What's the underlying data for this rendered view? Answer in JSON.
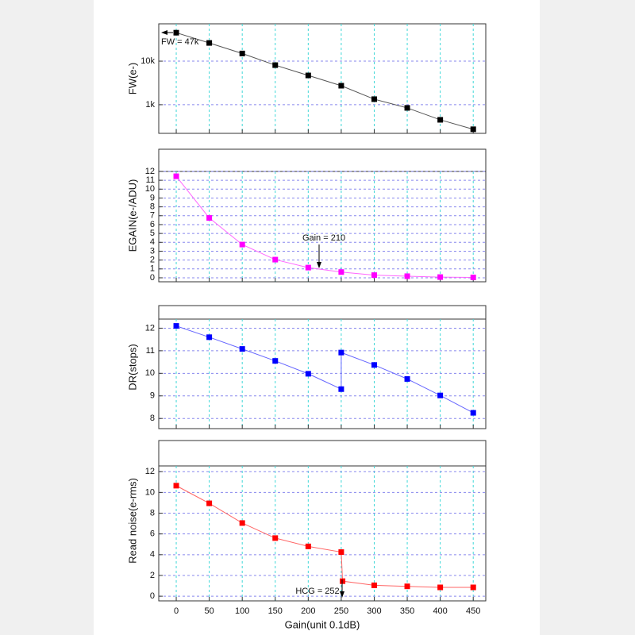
{
  "chart_data": [
    {
      "type": "line",
      "ylabel": "FW(e-)",
      "log_y": true,
      "color": "#000000",
      "line_color": "#555555",
      "x": [
        0,
        50,
        100,
        150,
        200,
        250,
        300,
        350,
        400,
        450
      ],
      "values": [
        45000,
        26200,
        15000,
        8100,
        4700,
        2730,
        1340,
        845,
        450,
        273
      ],
      "ylim": [
        220,
        72000
      ],
      "yticks": [
        {
          "value": 1000,
          "label": "1k"
        },
        {
          "value": 10000,
          "label": "10k"
        }
      ],
      "grid": true,
      "annotations": [
        {
          "text": "FW = 47k"
        }
      ]
    },
    {
      "type": "line",
      "ylabel": "EGAIN(e-/ADU)",
      "color": "#ff00ff",
      "line_color": "#ff66ff",
      "x": [
        0,
        50,
        100,
        150,
        200,
        250,
        300,
        350,
        400,
        450
      ],
      "values": [
        11.45,
        6.75,
        3.75,
        2.05,
        1.15,
        0.65,
        0.3,
        0.18,
        0.08,
        0.04
      ],
      "ylim": [
        -0.45,
        14.5
      ],
      "yticks": [
        0,
        1,
        2,
        3,
        4,
        5,
        6,
        7,
        8,
        9,
        10,
        11,
        12
      ],
      "grid": true,
      "annotations": [
        {
          "text": "Gain = 210"
        }
      ]
    },
    {
      "type": "line",
      "ylabel": "DR(stops)",
      "color": "#0000ff",
      "line_color": "#6666ff",
      "x": [
        0,
        50,
        100,
        150,
        200,
        250,
        250,
        300,
        350,
        400,
        450
      ],
      "values": [
        12.1,
        11.6,
        11.08,
        10.55,
        9.98,
        9.3,
        10.92,
        10.37,
        9.75,
        9.02,
        8.25
      ],
      "ylim": [
        7.55,
        13.0
      ],
      "yticks": [
        8,
        9,
        10,
        11,
        12
      ],
      "grid": true
    },
    {
      "type": "line",
      "ylabel": "Read noise(e-rms)",
      "color": "#ff0000",
      "line_color": "#ff6666",
      "x": [
        0,
        50,
        100,
        150,
        200,
        250,
        252,
        300,
        350,
        400,
        450
      ],
      "values": [
        10.65,
        8.95,
        7.05,
        5.6,
        4.8,
        4.25,
        1.45,
        1.05,
        0.95,
        0.85,
        0.85
      ],
      "ylim": [
        -0.45,
        15
      ],
      "yticks": [
        0,
        2,
        4,
        6,
        8,
        10,
        12
      ],
      "grid": true,
      "annotations": [
        {
          "text": "HCG = 252"
        }
      ],
      "xlabel": "Gain(unit 0.1dB)",
      "xlim": [
        -26.5,
        469
      ],
      "xticks": [
        0,
        50,
        100,
        150,
        200,
        250,
        300,
        350,
        400,
        450
      ]
    }
  ]
}
